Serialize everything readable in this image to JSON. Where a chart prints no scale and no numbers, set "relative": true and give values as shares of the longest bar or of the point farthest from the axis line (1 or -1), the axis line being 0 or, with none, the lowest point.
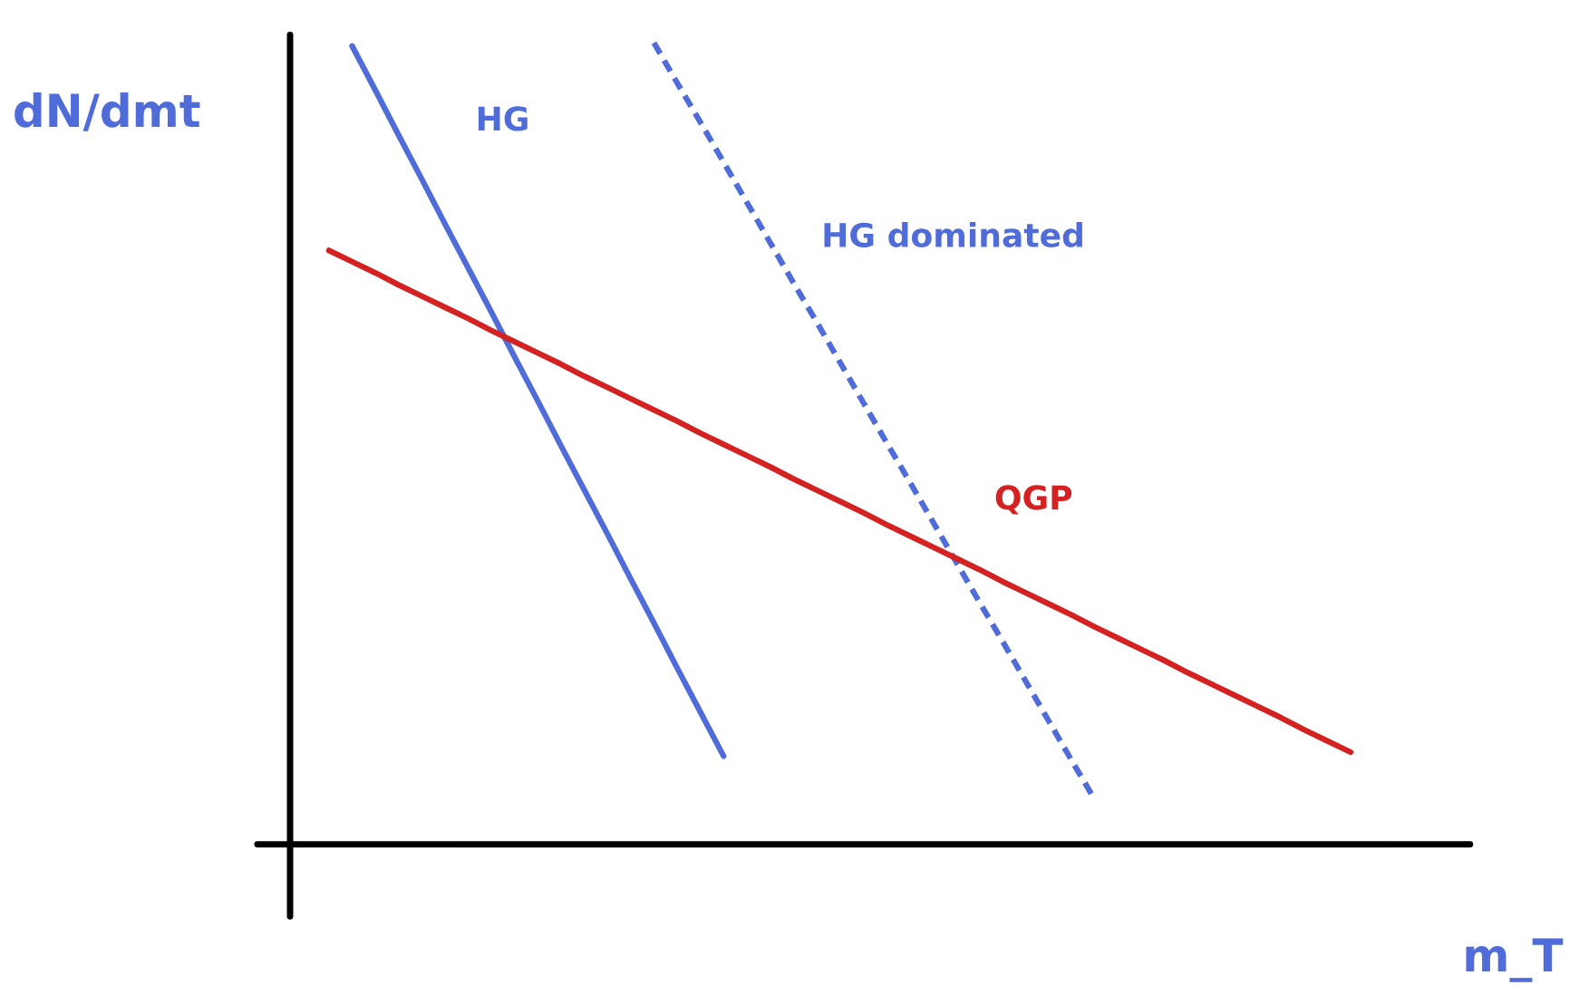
{
  "chart_data": {
    "type": "line",
    "relative": true,
    "xlabel": "m_T",
    "ylabel": "dN/dmt",
    "legend": false,
    "marker": "none",
    "categories": [
      null,
      null,
      null,
      null,
      null,
      null,
      null,
      null,
      null,
      null,
      null,
      null,
      null,
      null,
      null,
      null,
      null,
      null,
      null,
      null,
      null,
      null,
      null,
      null,
      null,
      null,
      null,
      null,
      null,
      null,
      null,
      null,
      null,
      null,
      null,
      null,
      null,
      null,
      null,
      null,
      null,
      null,
      null,
      null,
      null
    ],
    "series": [
      {
        "name": "HG",
        "color": "#4f6cd8",
        "line_style": "solid",
        "values": [
          null,
          0.996,
          0.941,
          0.885,
          0.83,
          0.774,
          0.719,
          0.664,
          0.608,
          0.553,
          0.497,
          0.442,
          0.387,
          0.331,
          0.276,
          0.22,
          0.165,
          0.11,
          null,
          null,
          null,
          null,
          null,
          null,
          null,
          null,
          null,
          null,
          null,
          null,
          null,
          null,
          null,
          null,
          null,
          null,
          null,
          null,
          null,
          null,
          null,
          null,
          null,
          null,
          null
        ]
      },
      {
        "name": "HG dominated",
        "color": "#4f6cd8",
        "line_style": "dashed",
        "values": [
          null,
          null,
          null,
          null,
          null,
          null,
          null,
          null,
          null,
          null,
          null,
          null,
          null,
          null,
          1.0,
          0.95,
          0.901,
          0.851,
          0.801,
          0.751,
          0.701,
          0.652,
          0.602,
          0.552,
          0.502,
          0.453,
          0.403,
          0.353,
          0.303,
          0.254,
          0.204,
          0.154,
          0.104,
          0.055,
          null,
          null,
          null,
          null,
          null,
          null,
          null,
          null,
          null,
          null,
          null
        ]
      },
      {
        "name": "QGP",
        "color": "#d42121",
        "line_style": "solid",
        "values": [
          0.741,
          0.727,
          0.713,
          0.698,
          0.684,
          0.67,
          0.656,
          0.641,
          0.627,
          0.613,
          0.599,
          0.584,
          0.57,
          0.556,
          0.542,
          0.528,
          0.513,
          0.499,
          0.485,
          0.471,
          0.456,
          0.442,
          0.428,
          0.414,
          0.399,
          0.385,
          0.371,
          0.357,
          0.343,
          0.328,
          0.314,
          0.3,
          0.286,
          0.271,
          0.257,
          0.243,
          0.229,
          0.214,
          0.2,
          0.186,
          0.172,
          0.158,
          0.143,
          0.129,
          0.115
        ]
      }
    ]
  }
}
